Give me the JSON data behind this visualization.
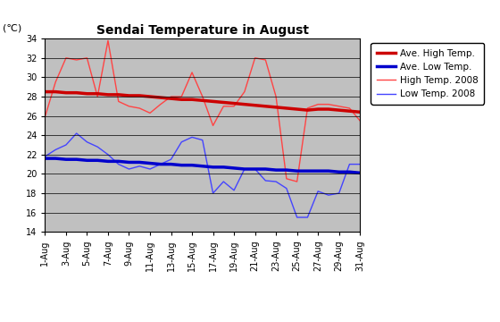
{
  "title": "Sendai Temperature in August",
  "celsius_label": "(℃)",
  "ylim": [
    14,
    34
  ],
  "yticks": [
    14,
    16,
    18,
    20,
    22,
    24,
    26,
    28,
    30,
    32,
    34
  ],
  "days": [
    1,
    2,
    3,
    4,
    5,
    6,
    7,
    8,
    9,
    10,
    11,
    12,
    13,
    14,
    15,
    16,
    17,
    18,
    19,
    20,
    21,
    22,
    23,
    24,
    25,
    26,
    27,
    28,
    29,
    30,
    31
  ],
  "xtick_labels": [
    "1-Aug",
    "3-Aug",
    "5-Aug",
    "7-Aug",
    "9-Aug",
    "11-Aug",
    "13-Aug",
    "15-Aug",
    "17-Aug",
    "19-Aug",
    "21-Aug",
    "23-Aug",
    "25-Aug",
    "27-Aug",
    "29-Aug",
    "31-Aug"
  ],
  "xtick_positions": [
    1,
    3,
    5,
    7,
    9,
    11,
    13,
    15,
    17,
    19,
    21,
    23,
    25,
    27,
    29,
    31
  ],
  "ave_high": [
    28.5,
    28.5,
    28.4,
    28.4,
    28.3,
    28.3,
    28.2,
    28.2,
    28.1,
    28.1,
    28.0,
    27.9,
    27.8,
    27.7,
    27.7,
    27.6,
    27.5,
    27.4,
    27.3,
    27.2,
    27.1,
    27.0,
    26.9,
    26.8,
    26.7,
    26.6,
    26.7,
    26.7,
    26.6,
    26.5,
    26.4
  ],
  "ave_low": [
    21.6,
    21.6,
    21.5,
    21.5,
    21.4,
    21.4,
    21.3,
    21.3,
    21.2,
    21.2,
    21.1,
    21.0,
    21.0,
    20.9,
    20.9,
    20.8,
    20.7,
    20.7,
    20.6,
    20.5,
    20.5,
    20.5,
    20.4,
    20.4,
    20.3,
    20.3,
    20.3,
    20.3,
    20.2,
    20.2,
    20.1
  ],
  "high_2008": [
    25.9,
    29.5,
    32.0,
    31.8,
    32.0,
    28.0,
    33.8,
    27.5,
    27.0,
    26.8,
    26.3,
    27.2,
    28.0,
    28.0,
    30.5,
    28.0,
    25.0,
    27.0,
    27.0,
    28.5,
    32.0,
    31.8,
    28.0,
    19.5,
    19.2,
    26.8,
    27.2,
    27.2,
    27.0,
    26.8,
    25.5
  ],
  "low_2008": [
    21.8,
    22.5,
    23.0,
    24.2,
    23.3,
    22.8,
    22.0,
    21.0,
    20.5,
    20.8,
    20.5,
    21.0,
    21.5,
    23.3,
    23.8,
    23.5,
    18.0,
    19.2,
    18.3,
    20.5,
    20.5,
    19.3,
    19.2,
    18.5,
    15.5,
    15.5,
    18.2,
    17.8,
    18.0,
    21.0,
    21.0
  ],
  "ave_high_color": "#cc0000",
  "ave_low_color": "#0000cc",
  "high_2008_color": "#ff4444",
  "low_2008_color": "#4444ff",
  "bg_color": "#c0c0c0",
  "legend_labels": [
    "Ave. High Temp.",
    "Ave. Low Temp.",
    "High Temp. 2008",
    "Low Temp. 2008"
  ],
  "title_fontsize": 10,
  "tick_fontsize": 7,
  "legend_fontsize": 7.5
}
